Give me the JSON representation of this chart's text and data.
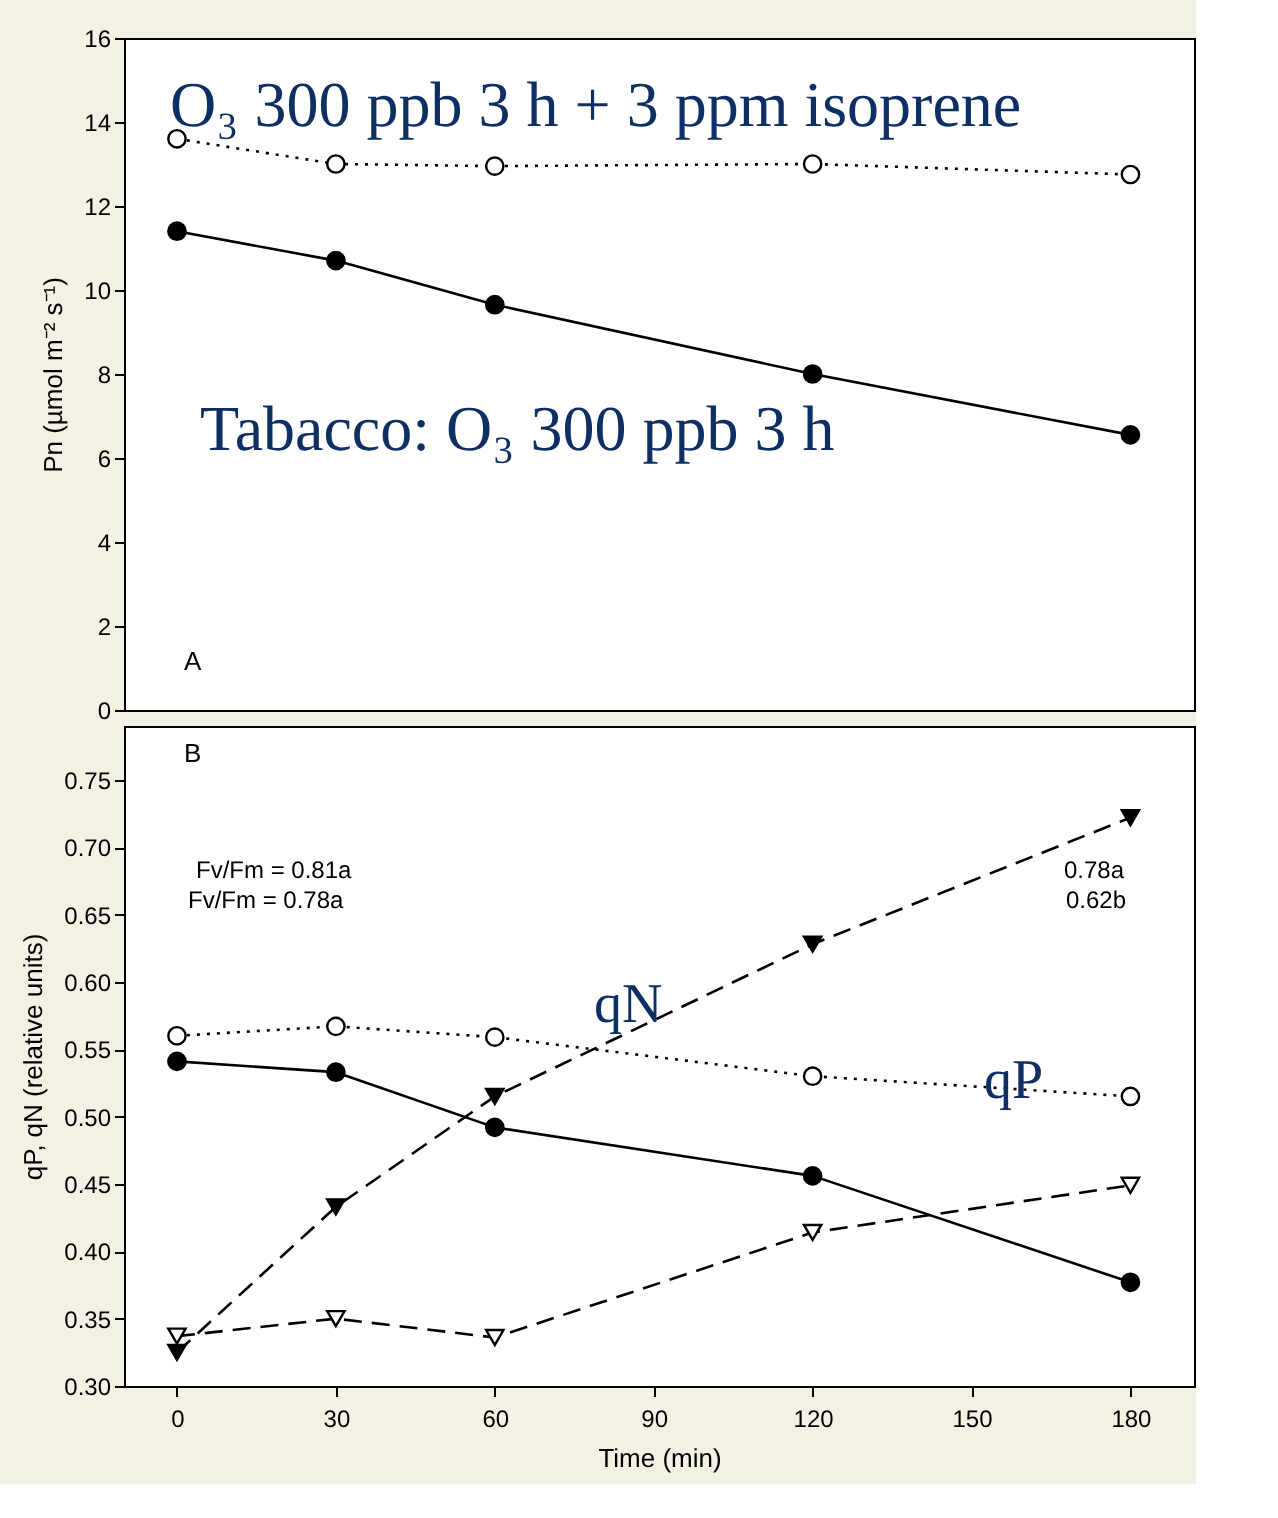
{
  "chart_data": [
    {
      "type": "line",
      "x": [
        0,
        30,
        60,
        120,
        180
      ],
      "xlim": [
        -10,
        192
      ],
      "xticks": [
        0,
        30,
        60,
        90,
        120,
        150,
        180
      ],
      "ylim": [
        0,
        16
      ],
      "yticks": [
        0,
        2,
        4,
        6,
        8,
        10,
        12,
        14,
        16
      ],
      "ylabel": "Pn (µmol m⁻² s⁻¹)",
      "tick_labels": "y",
      "grid": false,
      "series": [
        {
          "color": "#000000",
          "marker": "circle",
          "line_style": "dotted",
          "values": [
            13.6,
            13.0,
            12.95,
            13.0,
            12.75
          ]
        },
        {
          "color": "#000000",
          "marker": "circle",
          "line_style": "solid",
          "values": [
            11.4,
            10.7,
            9.65,
            8.0,
            6.55
          ]
        }
      ],
      "annotations": [
        "O₃ 300 ppb 3 h + 3 ppm isoprene",
        "Tabacco: O₃ 300 ppb 3 h",
        "A"
      ]
    },
    {
      "type": "line",
      "x": [
        0,
        30,
        60,
        120,
        180
      ],
      "xlim": [
        -10,
        192
      ],
      "xticks": [
        0,
        30,
        60,
        90,
        120,
        150,
        180
      ],
      "ylim": [
        0.3,
        0.79
      ],
      "yticks": [
        {
          "value": 0.3,
          "label": "0.30"
        },
        {
          "value": 0.35,
          "label": "0.35"
        },
        {
          "value": 0.4,
          "label": "0.40"
        },
        {
          "value": 0.45,
          "label": "0.45"
        },
        {
          "value": 0.5,
          "label": "0.50"
        },
        {
          "value": 0.55,
          "label": "0.55"
        },
        {
          "value": 0.6,
          "label": "0.60"
        },
        {
          "value": 0.65,
          "label": "0.65"
        },
        {
          "value": 0.7,
          "label": "0.70"
        },
        {
          "value": 0.75,
          "label": "0.75"
        }
      ],
      "xlabel": "Time (min)",
      "ylabel": "qP, qN (relative units)",
      "grid": false,
      "series": [
        {
          "color": "#000000",
          "marker": "circle",
          "line_style": "dotted",
          "values": [
            0.56,
            0.567,
            0.559,
            0.53,
            0.515
          ]
        },
        {
          "color": "#000000",
          "marker": "circle",
          "line_style": "solid",
          "values": [
            0.541,
            0.533,
            0.492,
            0.456,
            0.377
          ]
        },
        {
          "color": "#000000",
          "marker": "triangle",
          "line_style": "dashed",
          "values": [
            0.325,
            0.433,
            0.515,
            0.628,
            0.722
          ]
        },
        {
          "color": "#000000",
          "marker": "triangle",
          "line_style": "dashed",
          "values": [
            0.337,
            0.35,
            0.336,
            0.414,
            0.449
          ]
        }
      ],
      "annotations": [
        "B",
        "Fv/Fm = 0.81a",
        "Fv/Fm =  0.78a",
        "0.78a",
        "0.62b",
        "qN",
        "qP"
      ]
    }
  ]
}
